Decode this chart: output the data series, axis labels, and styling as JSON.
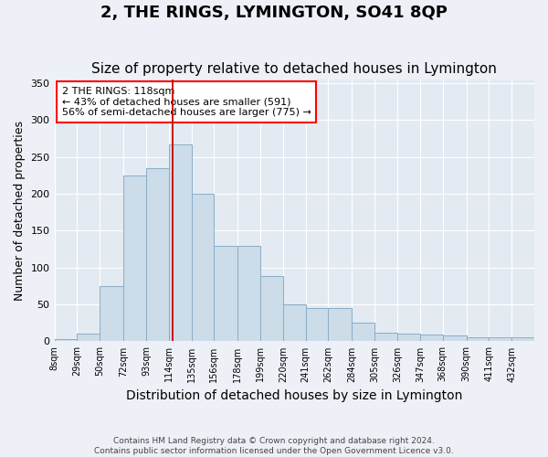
{
  "title": "2, THE RINGS, LYMINGTON, SO41 8QP",
  "subtitle": "Size of property relative to detached houses in Lymington",
  "xlabel": "Distribution of detached houses by size in Lymington",
  "ylabel": "Number of detached properties",
  "bar_color": "#ccdce8",
  "bar_edge_color": "#88aec8",
  "vline_x": 118,
  "vline_color": "#cc0000",
  "ylim": [
    0,
    355
  ],
  "yticks": [
    0,
    50,
    100,
    150,
    200,
    250,
    300,
    350
  ],
  "annotation_title": "2 THE RINGS: 118sqm",
  "annotation_line1": "← 43% of detached houses are smaller (591)",
  "annotation_line2": "56% of semi-detached houses are larger (775) →",
  "footer1": "Contains HM Land Registry data © Crown copyright and database right 2024.",
  "footer2": "Contains public sector information licensed under the Open Government Licence v3.0.",
  "bg_color": "#edf1f7",
  "plot_bg_color": "#e4eaf2",
  "title_fontsize": 13,
  "subtitle_fontsize": 11,
  "xlabel_fontsize": 10,
  "ylabel_fontsize": 9,
  "bin_edges": [
    8,
    29,
    50,
    72,
    93,
    114,
    135,
    156,
    178,
    199,
    220,
    241,
    262,
    284,
    305,
    326,
    347,
    368,
    390,
    411,
    432,
    453
  ],
  "bin_values": [
    3,
    10,
    75,
    225,
    235,
    267,
    200,
    130,
    130,
    88,
    50,
    45,
    45,
    25,
    12,
    11,
    9,
    8,
    5,
    5,
    6
  ]
}
